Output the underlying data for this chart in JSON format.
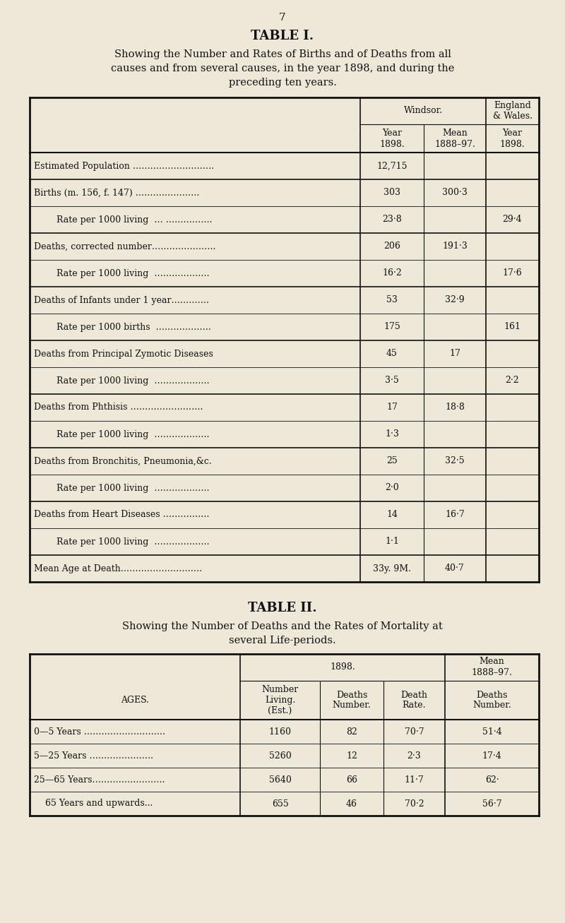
{
  "bg_color": "#ede8d8",
  "page_number": "7",
  "table1_title": "TABLE I.",
  "table1_sub1": "Showing the Number and Rates of Births and of Deaths from all",
  "table1_sub2": "causes and from several causes, in the year 1898, and during the",
  "table1_sub3": "preceding ten years.",
  "table2_title": "TABLE II.",
  "table2_sub1": "Showing the Number of Deaths and the Rates of Mortality at",
  "table2_sub2": "several Life-periods.",
  "tc": "#111111",
  "lc": "#111111",
  "t1_rows": [
    [
      "Estimated Population ……………………….",
      "12,715",
      "",
      ""
    ],
    [
      "Births (m. 156, f. 147) ………………….",
      "303",
      "300·3",
      ""
    ],
    [
      "        Rate per 1000 living  … …………….",
      "23·8",
      "",
      "29·4"
    ],
    [
      "Deaths, corrected number………………….",
      "206",
      "191·3",
      ""
    ],
    [
      "        Rate per 1000 living  ……………….",
      "16·2",
      "",
      "17·6"
    ],
    [
      "Deaths of Infants under 1 year………….",
      "53",
      "32·9",
      ""
    ],
    [
      "        Rate per 1000 births  ……………….",
      "175",
      "",
      "161"
    ],
    [
      "Deaths from Principal Zymotic Diseases",
      "45",
      "17",
      ""
    ],
    [
      "        Rate per 1000 living  ……………….",
      "3·5",
      "",
      "2·2"
    ],
    [
      "Deaths from Phthisis …………………….",
      "17",
      "18·8",
      ""
    ],
    [
      "        Rate per 1000 living  ……………….",
      "1·3",
      "",
      ""
    ],
    [
      "Deaths from Bronchitis, Pneumonia,&c.",
      "25",
      "32·5",
      ""
    ],
    [
      "        Rate per 1000 living  ……………….",
      "2·0",
      "",
      ""
    ],
    [
      "Deaths from Heart Diseases …………….",
      "14",
      "16·7",
      ""
    ],
    [
      "        Rate per 1000 living  ……………….",
      "1·1",
      "",
      ""
    ],
    [
      "Mean Age at Death……………………….",
      "33y. 9M.",
      "40·7",
      ""
    ]
  ],
  "t1_group_starts": [
    0,
    1,
    3,
    5,
    7,
    9,
    11,
    13,
    15
  ],
  "t2_rows": [
    [
      "0—5 Years ……………………….",
      "1160",
      "82",
      "70·7",
      "51·4"
    ],
    [
      "5—25 Years ………………….",
      "5260",
      "12",
      "2·3",
      "17·4"
    ],
    [
      "25—65 Years…………………….",
      "5640",
      "66",
      "11·7",
      "62·"
    ],
    [
      "    65 Years and upwards...",
      "655",
      "46",
      "70·2",
      "56·7"
    ]
  ]
}
